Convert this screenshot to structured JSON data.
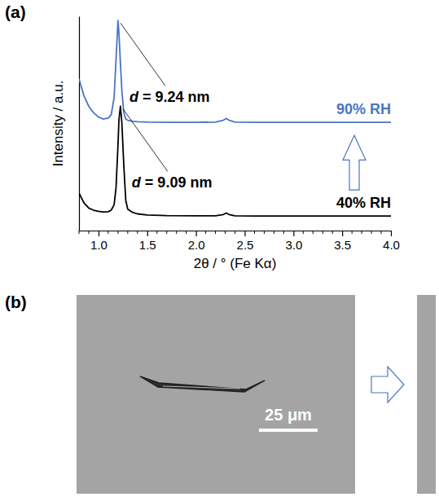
{
  "chart_data": {
    "type": "line",
    "panel_label": "(a)",
    "x_label": "2θ / ° (Fe Kα)",
    "y_label": "Intensity / a.u.",
    "x": [
      0.8,
      0.85,
      0.9,
      0.95,
      1.0,
      1.05,
      1.1,
      1.13,
      1.16,
      1.18,
      1.2,
      1.21,
      1.225,
      1.24,
      1.26,
      1.28,
      1.3,
      1.35,
      1.4,
      1.5,
      1.7,
      2.0,
      2.2,
      2.28,
      2.31,
      2.34,
      2.4,
      2.6,
      3.0,
      3.5,
      4.0
    ],
    "series": [
      {
        "name": "90% RH",
        "color": "#4a74c4",
        "values": [
          70.7,
          63,
          58,
          55,
          53,
          52,
          52.5,
          54,
          62,
          80,
          98,
          92,
          78,
          65,
          55,
          52,
          51.5,
          51,
          50.8,
          50.6,
          50.5,
          50.5,
          50.6,
          51.5,
          52.3,
          51.5,
          50.6,
          50.5,
          50.5,
          50.5,
          50.5
        ]
      },
      {
        "name": "40% RH",
        "color": "#000000",
        "values": [
          17.5,
          13,
          10.5,
          9.5,
          9,
          8.7,
          8.8,
          9.5,
          12,
          20,
          40,
          52,
          58,
          50,
          30,
          14,
          10,
          8.5,
          7.8,
          7.3,
          7.0,
          6.9,
          6.9,
          7.5,
          8.2,
          7.5,
          6.9,
          6.8,
          6.8,
          6.8,
          6.8
        ]
      }
    ],
    "annotations": [
      "d = 9.24 nm",
      "d = 9.09 nm"
    ],
    "xlim": [
      0.8,
      4.0
    ],
    "ylim": [
      0,
      100
    ],
    "xticks": [
      {
        "value": 1,
        "label": "1.0"
      },
      1.5,
      {
        "value": 2,
        "label": "2.0"
      },
      2.5,
      {
        "value": 3,
        "label": "3.0"
      },
      3.5,
      {
        "value": 4,
        "label": "4.0"
      }
    ],
    "minor_xticks": [
      0.8,
      0.9,
      1.1,
      1.2,
      1.3,
      1.4,
      1.6,
      1.7,
      1.8,
      1.9,
      2.1,
      2.2,
      2.3,
      2.4,
      2.6,
      2.7,
      2.8,
      2.9,
      3.1,
      3.2,
      3.3,
      3.4,
      3.6,
      3.7,
      3.8,
      3.9
    ],
    "tick_labels": "x",
    "grid": false
  },
  "image_panel": {
    "label": "(b)",
    "scale_bar_label": "25 μm"
  }
}
